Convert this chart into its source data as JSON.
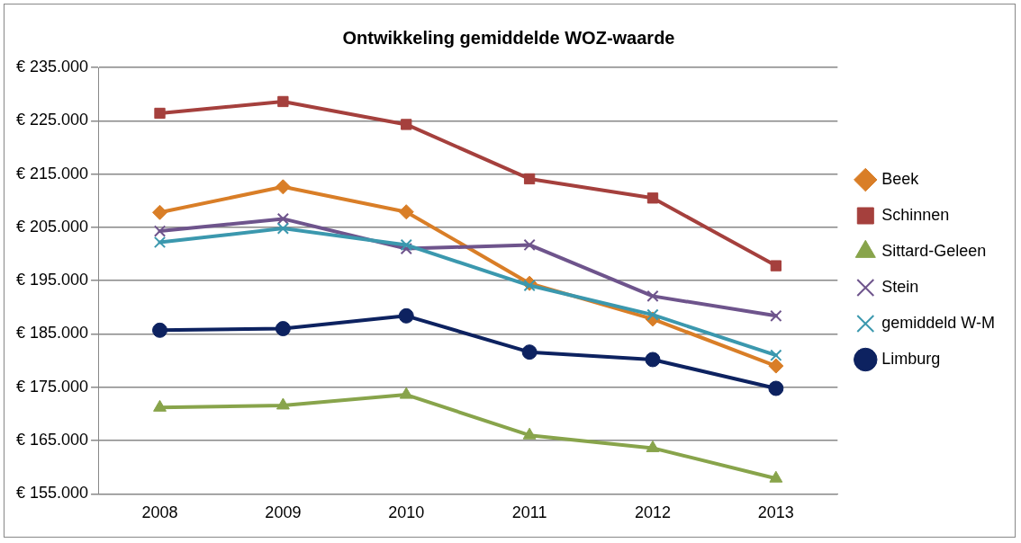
{
  "chart_data": {
    "type": "line",
    "title": "Ontwikkeling gemiddelde WOZ-waarde",
    "categories": [
      "2008",
      "2009",
      "2010",
      "2011",
      "2012",
      "2013"
    ],
    "series": [
      {
        "name": "Beek",
        "color": "#d97e27",
        "marker": "diamond",
        "values": [
          207800,
          212600,
          207900,
          194500,
          187800,
          179000
        ]
      },
      {
        "name": "Schinnen",
        "color": "#a5403d",
        "marker": "square",
        "values": [
          226400,
          228600,
          224300,
          214100,
          210500,
          197800
        ]
      },
      {
        "name": "Sittard-Geleen",
        "color": "#88a44b",
        "marker": "triangle",
        "values": [
          171200,
          171600,
          173600,
          166000,
          163600,
          157900
        ]
      },
      {
        "name": "Stein",
        "color": "#6e548c",
        "marker": "cross",
        "values": [
          204300,
          206600,
          201000,
          201700,
          192100,
          188400
        ]
      },
      {
        "name": "gemiddeld W-M",
        "color": "#3b98ae",
        "marker": "cross",
        "values": [
          202200,
          204800,
          201700,
          194100,
          188600,
          181000
        ]
      },
      {
        "name": "Limburg",
        "color": "#0d2260",
        "marker": "circle",
        "values": [
          185700,
          186000,
          188400,
          181600,
          180200,
          174800
        ]
      }
    ],
    "ylim": [
      155000,
      235000
    ],
    "yticks": [
      {
        "value": 155000,
        "label": "€ 155.000"
      },
      {
        "value": 165000,
        "label": "€ 165.000"
      },
      {
        "value": 175000,
        "label": "€ 175.000"
      },
      {
        "value": 185000,
        "label": "€ 185.000"
      },
      {
        "value": 195000,
        "label": "€ 195.000"
      },
      {
        "value": 205000,
        "label": "€ 205.000"
      },
      {
        "value": 215000,
        "label": "€ 215.000"
      },
      {
        "value": 225000,
        "label": "€ 225.000"
      },
      {
        "value": 235000,
        "label": "€ 235.000"
      }
    ],
    "grid": "y",
    "legend": "right",
    "line_style": "solid"
  }
}
